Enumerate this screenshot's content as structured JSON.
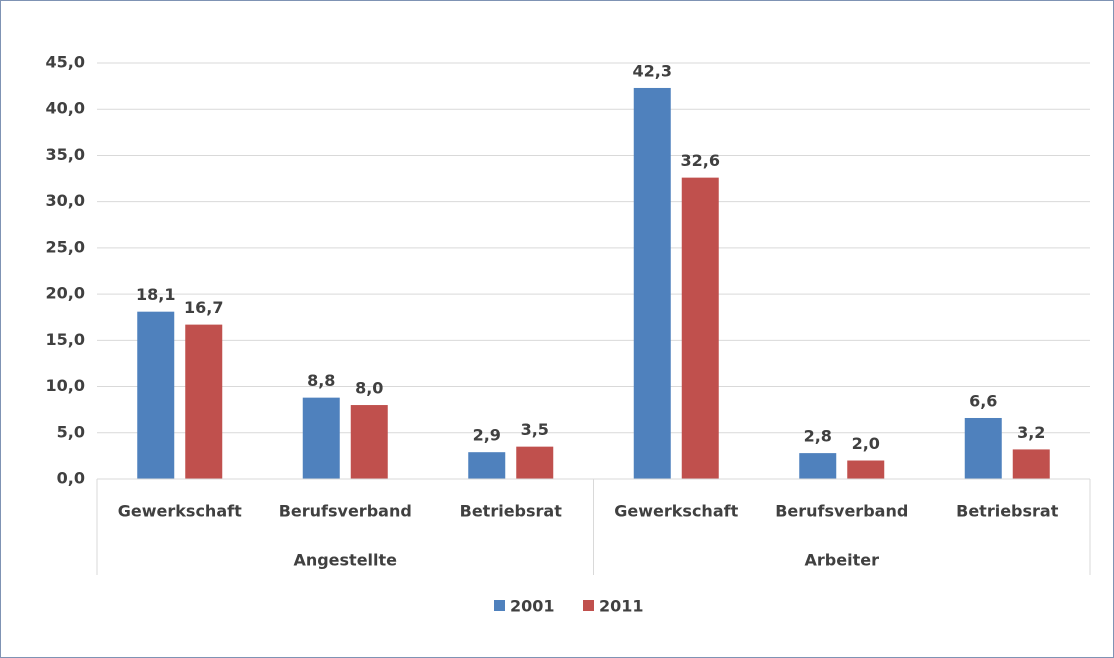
{
  "chart_data": {
    "type": "bar",
    "groups": [
      {
        "name": "Angestellte",
        "categories": [
          "Gewerkschaft",
          "Berufsverband",
          "Betriebsrat"
        ]
      },
      {
        "name": "Arbeiter",
        "categories": [
          "Gewerkschaft",
          "Berufsverband",
          "Betriebsrat"
        ]
      }
    ],
    "series": [
      {
        "name": "2001",
        "color": "#4f81bd",
        "values": [
          18.1,
          8.8,
          2.9,
          42.3,
          2.8,
          6.6
        ],
        "value_labels": [
          "18,1",
          "8,8",
          "2,9",
          "42,3",
          "2,8",
          "6,6"
        ]
      },
      {
        "name": "2011",
        "color": "#c0504d",
        "values": [
          16.7,
          8.0,
          3.5,
          32.6,
          2.0,
          3.2
        ],
        "value_labels": [
          "16,7",
          "8,0",
          "3,5",
          "32,6",
          "2,0",
          "3,2"
        ]
      }
    ],
    "ylim": [
      0,
      45
    ],
    "yticks": [
      {
        "value": 0,
        "label": "0,0"
      },
      {
        "value": 5,
        "label": "5,0"
      },
      {
        "value": 10,
        "label": "10,0"
      },
      {
        "value": 15,
        "label": "15,0"
      },
      {
        "value": 20,
        "label": "20,0"
      },
      {
        "value": 25,
        "label": "25,0"
      },
      {
        "value": 30,
        "label": "30,0"
      },
      {
        "value": 35,
        "label": "35,0"
      },
      {
        "value": 40,
        "label": "40,0"
      },
      {
        "value": 45,
        "label": "45,0"
      }
    ],
    "grid": true,
    "legend": "bottom"
  }
}
